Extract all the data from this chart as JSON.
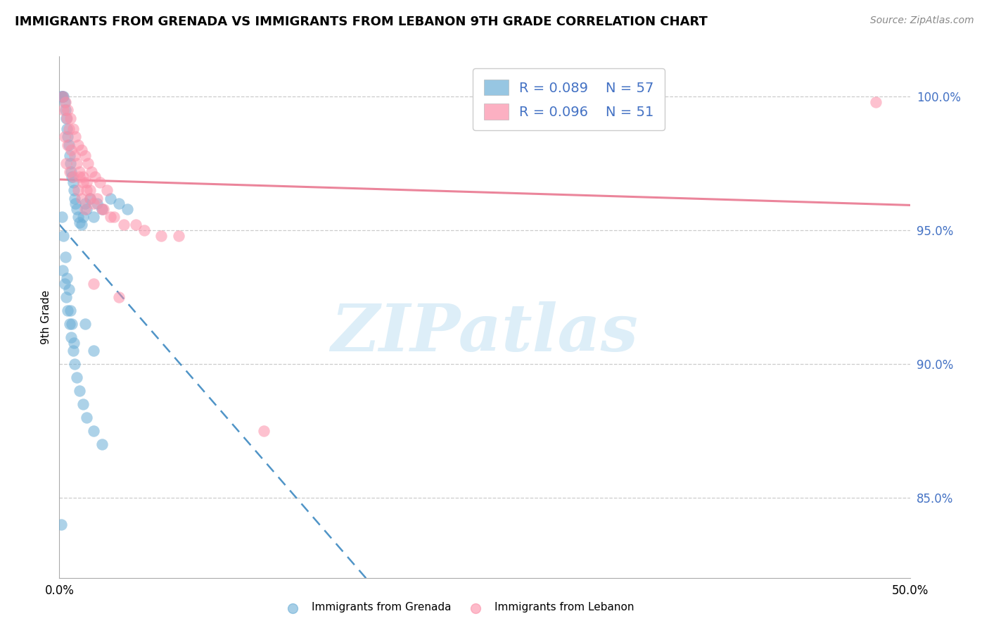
{
  "title": "IMMIGRANTS FROM GRENADA VS IMMIGRANTS FROM LEBANON 9TH GRADE CORRELATION CHART",
  "source": "Source: ZipAtlas.com",
  "ylabel": "9th Grade",
  "xlim": [
    0.0,
    50.0
  ],
  "ylim": [
    82.0,
    101.5
  ],
  "y_tick_vals": [
    85.0,
    90.0,
    95.0,
    100.0
  ],
  "y_tick_labels": [
    "85.0%",
    "90.0%",
    "95.0%",
    "100.0%"
  ],
  "x_tick_vals": [
    0.0,
    50.0
  ],
  "x_tick_labels": [
    "0.0%",
    "50.0%"
  ],
  "legend_r1": "R = 0.089",
  "legend_n1": "N = 57",
  "legend_r2": "R = 0.096",
  "legend_n2": "N = 51",
  "legend_label1": "Immigrants from Grenada",
  "legend_label2": "Immigrants from Lebanon",
  "color_blue": "#6baed6",
  "color_pink": "#fc8fa8",
  "color_blue_line": "#3182bd",
  "color_pink_line": "#e8708a",
  "watermark_text": "ZIPatlas",
  "grenada_x": [
    0.1,
    0.15,
    0.2,
    0.25,
    0.3,
    0.35,
    0.4,
    0.45,
    0.5,
    0.55,
    0.6,
    0.65,
    0.7,
    0.75,
    0.8,
    0.85,
    0.9,
    0.95,
    1.0,
    1.1,
    1.2,
    1.3,
    1.4,
    1.5,
    1.6,
    1.8,
    2.0,
    2.2,
    2.5,
    3.0,
    3.5,
    4.0,
    0.2,
    0.3,
    0.4,
    0.5,
    0.6,
    0.7,
    0.8,
    0.9,
    1.0,
    1.2,
    1.4,
    1.6,
    2.0,
    2.5,
    1.5,
    2.0,
    0.15,
    0.25,
    0.35,
    0.45,
    0.55,
    0.65,
    0.75,
    0.85,
    0.1
  ],
  "grenada_y": [
    100.0,
    100.0,
    100.0,
    100.0,
    99.8,
    99.5,
    99.2,
    98.8,
    98.5,
    98.2,
    97.8,
    97.5,
    97.2,
    97.0,
    96.8,
    96.5,
    96.2,
    96.0,
    95.8,
    95.5,
    95.3,
    95.2,
    95.5,
    96.0,
    95.8,
    96.2,
    95.5,
    96.0,
    95.8,
    96.2,
    96.0,
    95.8,
    93.5,
    93.0,
    92.5,
    92.0,
    91.5,
    91.0,
    90.5,
    90.0,
    89.5,
    89.0,
    88.5,
    88.0,
    87.5,
    87.0,
    91.5,
    90.5,
    95.5,
    94.8,
    94.0,
    93.2,
    92.8,
    92.0,
    91.5,
    90.8,
    84.0
  ],
  "lebanon_x": [
    0.2,
    0.35,
    0.5,
    0.65,
    0.8,
    0.95,
    1.1,
    1.3,
    1.5,
    1.7,
    1.9,
    2.1,
    2.4,
    2.8,
    1.2,
    1.4,
    1.6,
    1.8,
    2.0,
    2.5,
    3.0,
    3.8,
    5.0,
    7.0,
    0.3,
    0.5,
    0.7,
    0.9,
    1.0,
    1.2,
    1.4,
    1.6,
    1.8,
    2.2,
    2.6,
    3.2,
    4.5,
    6.0,
    0.4,
    0.6,
    0.8,
    1.1,
    1.3,
    1.5,
    2.0,
    3.5,
    48.0,
    12.0,
    0.25,
    0.45,
    0.55
  ],
  "lebanon_y": [
    100.0,
    99.8,
    99.5,
    99.2,
    98.8,
    98.5,
    98.2,
    98.0,
    97.8,
    97.5,
    97.2,
    97.0,
    96.8,
    96.5,
    97.0,
    96.8,
    96.5,
    96.2,
    96.0,
    95.8,
    95.5,
    95.2,
    95.0,
    94.8,
    98.5,
    98.2,
    98.0,
    97.8,
    97.5,
    97.2,
    97.0,
    96.8,
    96.5,
    96.2,
    95.8,
    95.5,
    95.2,
    94.8,
    97.5,
    97.2,
    97.0,
    96.5,
    96.2,
    95.8,
    93.0,
    92.5,
    99.8,
    87.5,
    99.5,
    99.2,
    98.8
  ]
}
